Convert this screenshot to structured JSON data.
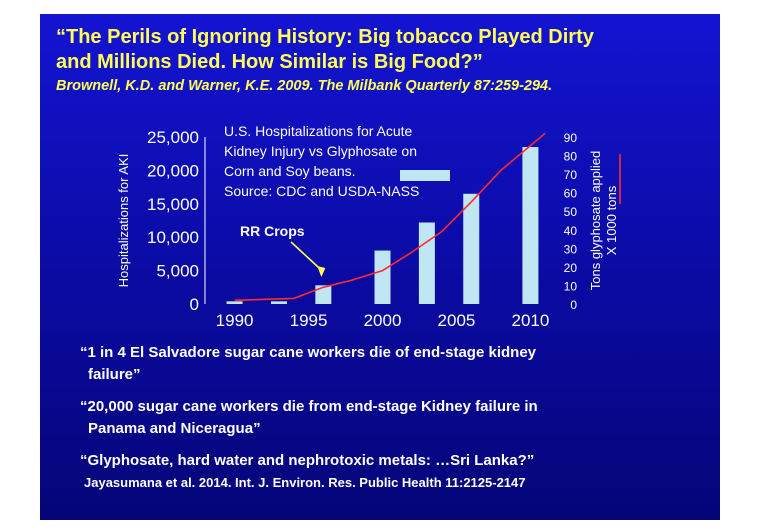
{
  "title_line1": "“The Perils of Ignoring History: Big tobacco Played Dirty",
  "title_line2": "and Millions Died. How Similar is Big Food?”",
  "citation": "Brownell, K.D. and Warner, K.E. 2009. The Milbank Quarterly 87:259-294.",
  "chart_data": {
    "type": "bar",
    "caption_lines": [
      "U.S. Hospitalizations for Acute",
      "Kidney Injury vs Glyphosate on",
      "Corn and Soy beans.",
      "Source: CDC and USDA-NASS"
    ],
    "ylabel": "Hospitalizations for AKI",
    "y2label_lines": [
      "Tons glyphosate applied",
      "X 1000 tons"
    ],
    "ylim": [
      0,
      25000
    ],
    "y2lim": [
      0,
      90
    ],
    "yticks": [
      "0",
      "5,000",
      "10,000",
      "15,000",
      "20,000",
      "25,000"
    ],
    "y2ticks": [
      "0",
      "10",
      "20",
      "30",
      "40",
      "50",
      "60",
      "70",
      "80",
      "90"
    ],
    "xticks": [
      "1990",
      "1995",
      "2000",
      "2005",
      "2010"
    ],
    "x": [
      1990,
      1993,
      1996,
      2000,
      2003,
      2006,
      2010
    ],
    "series": [
      {
        "type": "bar",
        "values": [
          400,
          400,
          2800,
          8000,
          12200,
          16500,
          23500
        ],
        "color": "#bfe6f2"
      },
      {
        "type": "line",
        "x": [
          1990,
          1994,
          1996,
          1998,
          2000,
          2002,
          2004,
          2006,
          2008,
          2011
        ],
        "values": [
          2,
          3,
          9,
          13,
          18,
          28,
          39,
          55,
          72,
          92
        ],
        "color": "#ff2a2a"
      }
    ],
    "annotation": {
      "text": "RR Crops",
      "x": 1996
    }
  },
  "quotes": {
    "q1a": "“1 in 4 El Salvadore sugar cane workers die of end-stage kidney",
    "q1b": "failure”",
    "q2a": "“20,000 sugar cane workers die from end-stage Kidney failure in",
    "q2b": "Panama and Niceragua”",
    "q3": "“Glyphosate, hard water and nephrotoxic metals: …Sri Lanka?”",
    "cite2": "Jayasumana et al. 2014. Int. J. Environ. Res. Public Health 11:2125-2147"
  }
}
